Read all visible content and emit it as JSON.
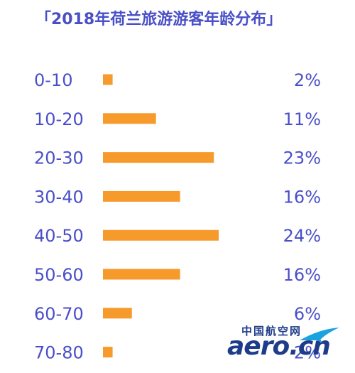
{
  "title": "「2018年荷兰旅游游客年龄分布」",
  "colors": {
    "bar": "#f79a2c",
    "text": "#4a4fc8"
  },
  "chart_data": {
    "type": "bar",
    "orientation": "horizontal",
    "title": "「2018年荷兰旅游游客年龄分布」",
    "categories": [
      "0-10",
      "10-20",
      "20-30",
      "30-40",
      "40-50",
      "50-60",
      "60-70",
      "70-80"
    ],
    "values": [
      2,
      11,
      23,
      16,
      24,
      16,
      6,
      2
    ],
    "value_labels": [
      "2%",
      "11%",
      "23%",
      "16%",
      "24%",
      "16%",
      "6%",
      "2%"
    ],
    "unit": "%",
    "grid": false
  },
  "watermark": {
    "cn": "中国航空网",
    "en": "aero.cn"
  }
}
